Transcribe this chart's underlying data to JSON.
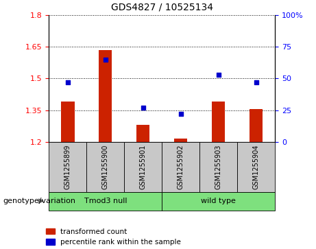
{
  "title": "GDS4827 / 10525134",
  "samples": [
    "GSM1255899",
    "GSM1255900",
    "GSM1255901",
    "GSM1255902",
    "GSM1255903",
    "GSM1255904"
  ],
  "red_values": [
    1.39,
    1.635,
    1.28,
    1.215,
    1.39,
    1.355
  ],
  "blue_percentile": [
    47,
    65,
    27,
    22,
    53,
    47
  ],
  "ylim_left": [
    1.2,
    1.8
  ],
  "ylim_right": [
    0,
    100
  ],
  "yticks_left": [
    1.2,
    1.35,
    1.5,
    1.65,
    1.8
  ],
  "ytick_labels_left": [
    "1.2",
    "1.35",
    "1.5",
    "1.65",
    "1.8"
  ],
  "yticks_right": [
    0,
    25,
    50,
    75,
    100
  ],
  "ytick_labels_right": [
    "0",
    "25",
    "50",
    "75",
    "100%"
  ],
  "groups": [
    {
      "label": "Tmod3 null",
      "span": [
        0,
        2
      ],
      "color": "#7EE07E"
    },
    {
      "label": "wild type",
      "span": [
        3,
        5
      ],
      "color": "#7EE07E"
    }
  ],
  "group_header": "genotype/variation",
  "bar_color": "#CC2200",
  "dot_color": "#0000CC",
  "bar_bottom": 1.2,
  "bar_width": 0.35,
  "legend_red": "transformed count",
  "legend_blue": "percentile rank within the sample",
  "sample_bg": "#C8C8C8",
  "plot_bg": "#FFFFFF",
  "dot_size": 25
}
